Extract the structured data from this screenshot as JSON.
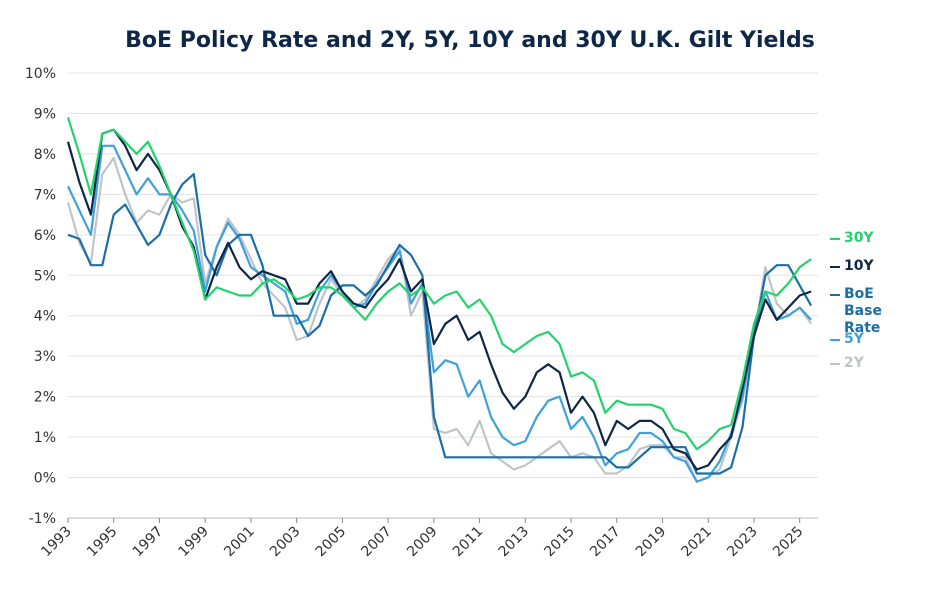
{
  "chart_data": {
    "type": "line",
    "title": "BoE Policy Rate and 2Y, 5Y, 10Y and 30Y U.K. Gilt Yields",
    "x": [
      1993,
      1993.5,
      1994,
      1994.5,
      1995,
      1995.5,
      1996,
      1996.5,
      1997,
      1997.5,
      1998,
      1998.5,
      1999,
      1999.5,
      2000,
      2000.5,
      2001,
      2001.5,
      2002,
      2002.5,
      2003,
      2003.5,
      2004,
      2004.5,
      2005,
      2005.5,
      2006,
      2006.5,
      2007,
      2007.5,
      2008,
      2008.5,
      2009,
      2009.5,
      2010,
      2010.5,
      2011,
      2011.5,
      2012,
      2012.5,
      2013,
      2013.5,
      2014,
      2014.5,
      2015,
      2015.5,
      2016,
      2016.5,
      2017,
      2017.5,
      2018,
      2018.5,
      2019,
      2019.5,
      2020,
      2020.5,
      2021,
      2021.5,
      2022,
      2022.5,
      2023,
      2023.5,
      2024,
      2024.5,
      2025,
      2025.5
    ],
    "xlim": [
      1993,
      2025.8
    ],
    "xticks": [
      1993,
      1995,
      1997,
      1999,
      2001,
      2003,
      2005,
      2007,
      2009,
      2011,
      2013,
      2015,
      2017,
      2019,
      2021,
      2023,
      2025
    ],
    "ylim": [
      -1,
      10
    ],
    "yticks": [
      {
        "value": -1,
        "label": "-1%"
      },
      {
        "value": 0,
        "label": "0%"
      },
      {
        "value": 1,
        "label": "1%"
      },
      {
        "value": 2,
        "label": "2%"
      },
      {
        "value": 3,
        "label": "3%"
      },
      {
        "value": 4,
        "label": "4%"
      },
      {
        "value": 5,
        "label": "5%"
      },
      {
        "value": 6,
        "label": "6%"
      },
      {
        "value": 7,
        "label": "7%"
      },
      {
        "value": 8,
        "label": "8%"
      },
      {
        "value": 9,
        "label": "9%"
      },
      {
        "value": 10,
        "label": "10%"
      }
    ],
    "grid": true,
    "series": [
      {
        "name": "30Y",
        "color": "#22d36b",
        "values": [
          8.9,
          8.0,
          7.0,
          8.5,
          8.6,
          8.3,
          8.0,
          8.3,
          7.7,
          7.0,
          6.3,
          5.6,
          4.4,
          4.7,
          4.6,
          4.5,
          4.5,
          4.8,
          4.9,
          4.7,
          4.4,
          4.5,
          4.7,
          4.7,
          4.5,
          4.2,
          3.9,
          4.3,
          4.6,
          4.8,
          4.5,
          4.7,
          4.3,
          4.5,
          4.6,
          4.2,
          4.4,
          4.0,
          3.3,
          3.1,
          3.3,
          3.5,
          3.6,
          3.3,
          2.5,
          2.6,
          2.4,
          1.6,
          1.9,
          1.8,
          1.8,
          1.8,
          1.7,
          1.2,
          1.1,
          0.7,
          0.9,
          1.2,
          1.3,
          2.4,
          3.8,
          4.6,
          4.5,
          4.8,
          5.2,
          5.4
        ]
      },
      {
        "name": "10Y",
        "color": "#0f2747",
        "values": [
          8.3,
          7.3,
          6.5,
          8.5,
          8.6,
          8.2,
          7.6,
          8.0,
          7.6,
          7.0,
          6.2,
          5.7,
          4.4,
          5.2,
          5.8,
          5.2,
          4.9,
          5.1,
          5.0,
          4.9,
          4.3,
          4.3,
          4.8,
          5.1,
          4.6,
          4.3,
          4.2,
          4.6,
          4.9,
          5.4,
          4.6,
          4.9,
          3.3,
          3.8,
          4.0,
          3.4,
          3.6,
          2.8,
          2.1,
          1.7,
          2.0,
          2.6,
          2.8,
          2.6,
          1.6,
          2.0,
          1.6,
          0.8,
          1.4,
          1.2,
          1.4,
          1.4,
          1.2,
          0.7,
          0.6,
          0.2,
          0.3,
          0.7,
          1.0,
          2.2,
          3.5,
          4.4,
          3.9,
          4.2,
          4.5,
          4.6
        ]
      },
      {
        "name": "BoE Base Rate",
        "color": "#1a6fa8",
        "values": [
          6.0,
          5.9,
          5.25,
          5.25,
          6.5,
          6.75,
          6.25,
          5.75,
          6.0,
          6.75,
          7.25,
          7.5,
          5.5,
          5.0,
          5.75,
          6.0,
          6.0,
          5.25,
          4.0,
          4.0,
          4.0,
          3.5,
          3.75,
          4.5,
          4.75,
          4.75,
          4.5,
          4.75,
          5.25,
          5.75,
          5.5,
          5.0,
          1.5,
          0.5,
          0.5,
          0.5,
          0.5,
          0.5,
          0.5,
          0.5,
          0.5,
          0.5,
          0.5,
          0.5,
          0.5,
          0.5,
          0.5,
          0.5,
          0.25,
          0.25,
          0.5,
          0.75,
          0.75,
          0.75,
          0.75,
          0.1,
          0.1,
          0.1,
          0.25,
          1.25,
          3.5,
          5.0,
          5.25,
          5.25,
          4.75,
          4.25
        ]
      },
      {
        "name": "5Y",
        "color": "#3ea1dc",
        "values": [
          7.2,
          6.6,
          6.0,
          8.2,
          8.2,
          7.6,
          7.0,
          7.4,
          7.0,
          7.0,
          6.6,
          6.1,
          4.6,
          5.7,
          6.3,
          5.9,
          5.2,
          5.0,
          4.8,
          4.6,
          3.8,
          3.9,
          4.6,
          5.0,
          4.6,
          4.2,
          4.3,
          4.8,
          5.2,
          5.6,
          4.3,
          4.8,
          2.6,
          2.9,
          2.8,
          2.0,
          2.4,
          1.5,
          1.0,
          0.8,
          0.9,
          1.5,
          1.9,
          2.0,
          1.2,
          1.5,
          1.0,
          0.3,
          0.6,
          0.7,
          1.1,
          1.1,
          0.9,
          0.5,
          0.4,
          -0.1,
          0.0,
          0.4,
          1.1,
          2.0,
          3.6,
          4.6,
          3.9,
          4.0,
          4.2,
          3.9
        ]
      },
      {
        "name": "2Y",
        "color": "#c0c4c8",
        "values": [
          6.8,
          5.8,
          5.3,
          7.5,
          7.9,
          7.0,
          6.3,
          6.6,
          6.5,
          7.0,
          6.8,
          6.9,
          4.8,
          5.7,
          6.4,
          6.0,
          5.4,
          4.8,
          4.5,
          4.2,
          3.4,
          3.5,
          4.3,
          4.9,
          4.5,
          4.2,
          4.4,
          4.9,
          5.4,
          5.7,
          4.0,
          4.6,
          1.2,
          1.1,
          1.2,
          0.8,
          1.4,
          0.6,
          0.4,
          0.2,
          0.3,
          0.5,
          0.7,
          0.9,
          0.5,
          0.6,
          0.5,
          0.1,
          0.1,
          0.3,
          0.7,
          0.8,
          0.8,
          0.5,
          0.5,
          -0.1,
          0.0,
          0.2,
          1.0,
          1.9,
          3.5,
          5.2,
          4.3,
          4.0,
          4.2,
          3.8
        ]
      }
    ]
  }
}
